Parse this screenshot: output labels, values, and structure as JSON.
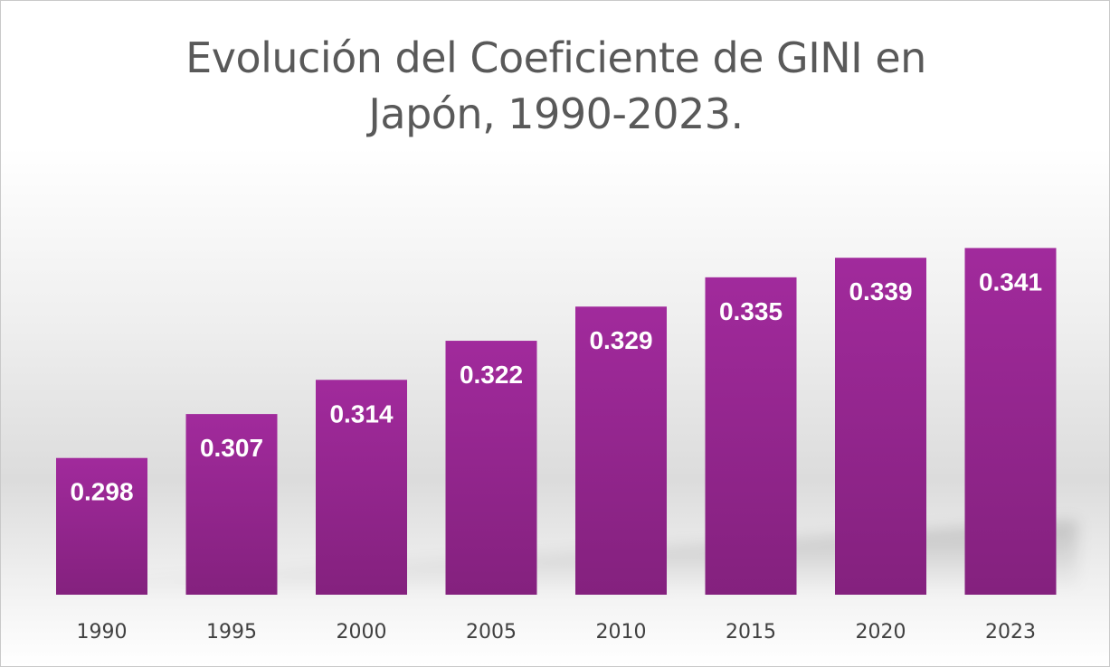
{
  "chart_data": {
    "type": "bar",
    "title_lines": [
      "Evolución del Coeficiente de GINI en",
      "Japón, 1990-2023."
    ],
    "categories": [
      "1990",
      "1995",
      "2000",
      "2005",
      "2010",
      "2015",
      "2020",
      "2023"
    ],
    "values": [
      0.298,
      0.307,
      0.314,
      0.322,
      0.329,
      0.335,
      0.339,
      0.341
    ],
    "value_labels": [
      "0.298",
      "0.307",
      "0.314",
      "0.322",
      "0.329",
      "0.335",
      "0.339",
      "0.341"
    ],
    "xlabel": "",
    "ylabel": "",
    "ylim": [
      0.27,
      0.342
    ],
    "grid": false,
    "legend": "none",
    "colors": {
      "bar_top": "#A12A9C",
      "bar_bottom": "#84217E",
      "label": "#FFFFFF",
      "axis_text": "#404040"
    }
  }
}
